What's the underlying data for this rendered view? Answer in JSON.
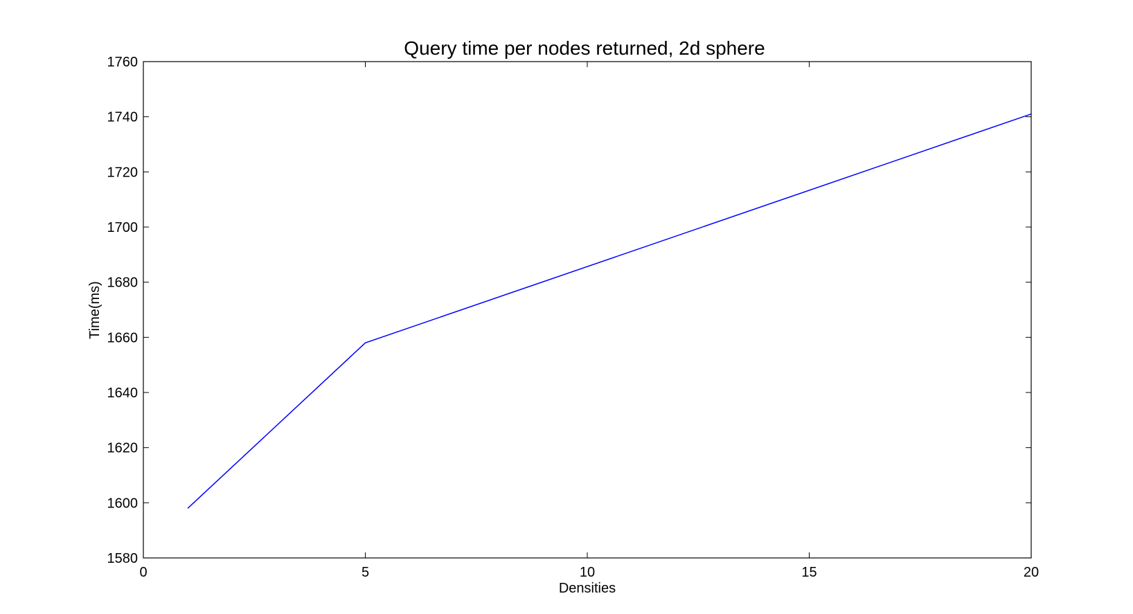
{
  "chart_data": {
    "type": "line",
    "title": "Query time per nodes returned, 2d sphere",
    "xlabel": "Densities",
    "ylabel": "Time(ms)",
    "xlim": [
      0,
      20
    ],
    "ylim": [
      1580,
      1760
    ],
    "x_ticks": [
      "0",
      "5",
      "10",
      "15",
      "20"
    ],
    "y_ticks": [
      "1580",
      "1600",
      "1620",
      "1640",
      "1660",
      "1680",
      "1700",
      "1720",
      "1740",
      "1760"
    ],
    "grid": false,
    "series": [
      {
        "x": [
          1,
          5,
          20
        ],
        "values": [
          1598,
          1658,
          1741
        ],
        "color": "#0000ff"
      }
    ]
  }
}
